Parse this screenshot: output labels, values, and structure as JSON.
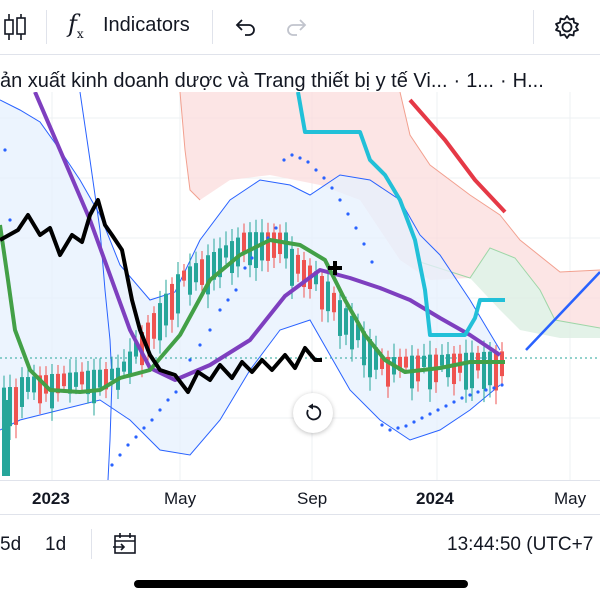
{
  "toolbar": {
    "indicators_label": "Indicators",
    "icons": [
      "candlestick-icon",
      "fx-icon",
      "undo-icon",
      "redo-icon",
      "settings-icon"
    ]
  },
  "title": {
    "name": "ản xuất kinh doanh dược và Trang thiết bị y tế Vi...",
    "interval": "1...",
    "exchange": "H..."
  },
  "fx_symbol": "f",
  "fx_sub": "x",
  "x_axis": {
    "labels": [
      {
        "text": "2023",
        "bold": true
      },
      {
        "text": "May",
        "bold": false
      },
      {
        "text": "Sep",
        "bold": false
      },
      {
        "text": "2024",
        "bold": true
      },
      {
        "text": "May",
        "bold": false
      }
    ]
  },
  "bottom_bar": {
    "range_5d": "5d",
    "range_1d": "1d",
    "time": "13:44:50 (UTC+7"
  },
  "colors": {
    "up": "#26a69a",
    "down": "#ef5350",
    "bollinger": "#2962ff",
    "ma_green": "#43a047",
    "ma_purple": "#7e3fbf",
    "cyan": "#22c0d8",
    "lagging": "#000000",
    "red_line": "#e53946",
    "blue_trend": "#2962ff",
    "cloud_bear": "#f8c9c9",
    "cloud_bull": "#cfe9d6",
    "bb_fill": "#e3eefc"
  }
}
